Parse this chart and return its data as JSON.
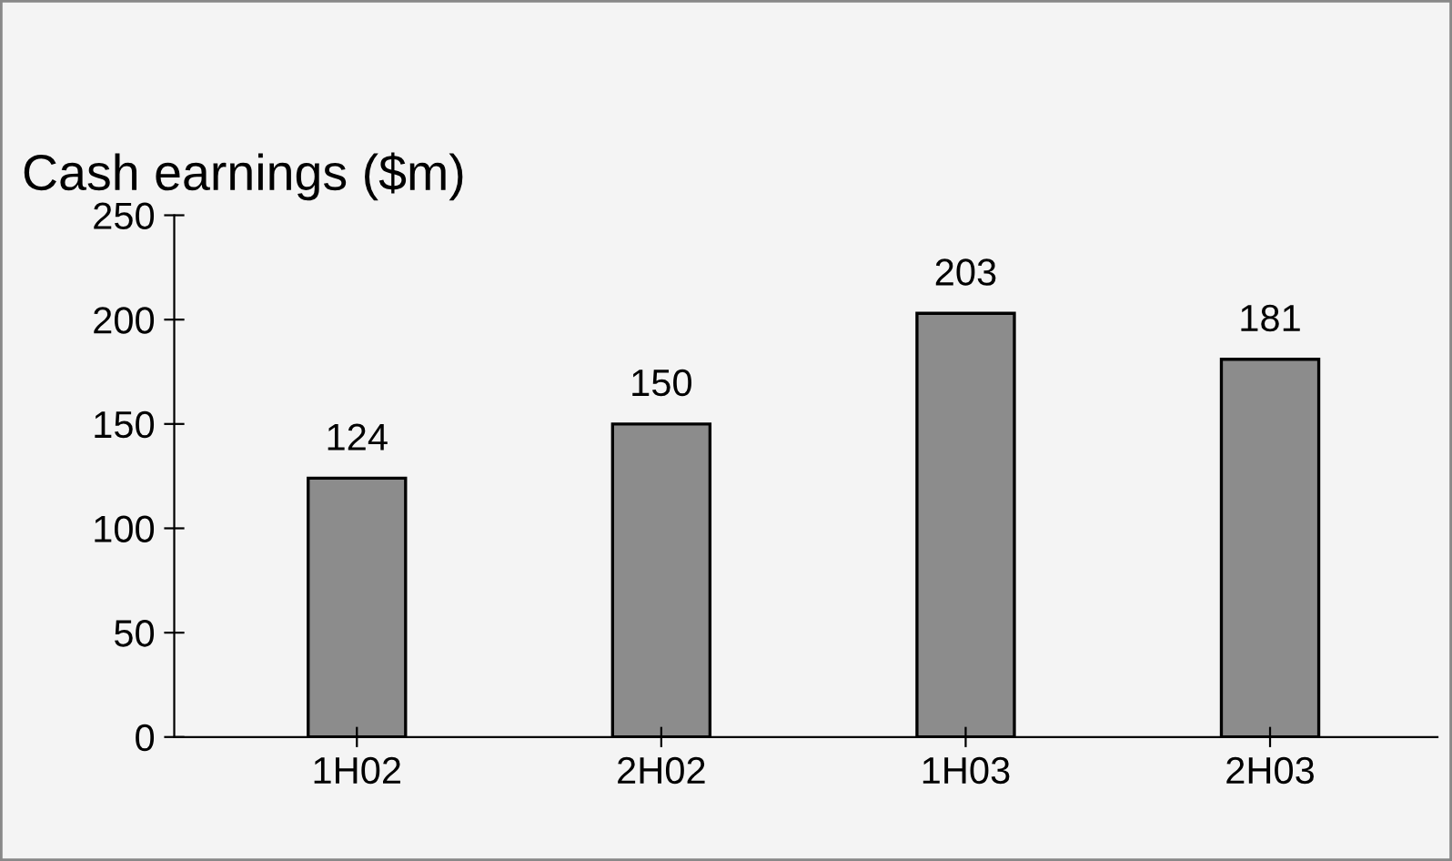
{
  "chart_data": {
    "type": "bar",
    "title": "Cash earnings ($m)",
    "categories": [
      "1H02",
      "2H02",
      "1H03",
      "2H03"
    ],
    "values": [
      124,
      150,
      203,
      181
    ],
    "color": "#8c8c8c",
    "ylim": [
      0,
      250
    ],
    "yticks": [
      0,
      50,
      100,
      150,
      200,
      250
    ],
    "grid": false,
    "data_labels": true
  }
}
